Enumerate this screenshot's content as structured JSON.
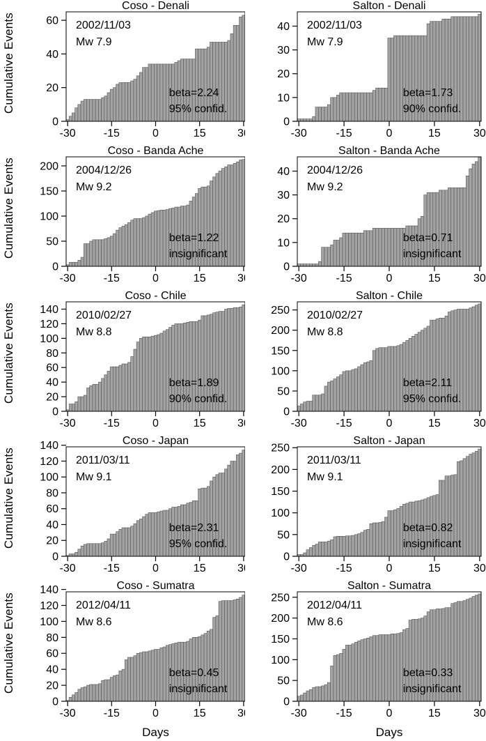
{
  "figure": {
    "y_axis_label": "Cumulative Events",
    "x_axis_label": "Days",
    "x_ticks": [
      -30,
      -15,
      0,
      15,
      30
    ],
    "x_range": [
      -30,
      30
    ],
    "grid": false,
    "legend": "none",
    "colors": {
      "background": "#ffffff",
      "bar_fill": "#a3a3a3",
      "bar_stroke": "#565656",
      "axis": "#000000",
      "text": "#000000"
    }
  },
  "chart_data": [
    {
      "type": "bar",
      "title": "Coso - Denali",
      "annotation_date": "2002/11/03",
      "annotation_mw": "Mw 7.9",
      "beta_label": "beta=2.24",
      "significance_label": "95% confid.",
      "ylabel": "Cumulative Events",
      "yticks": [
        0,
        20,
        40,
        60
      ],
      "ylim": [
        0,
        65
      ],
      "x_days_start": -30,
      "values": [
        1,
        3,
        5,
        8,
        10,
        12,
        13,
        13,
        13,
        13,
        13,
        13,
        14,
        15,
        17,
        19,
        20,
        22,
        23,
        23,
        23,
        23,
        24,
        25,
        27,
        29,
        32,
        32,
        34,
        34,
        34,
        34,
        34,
        34,
        34,
        34,
        34,
        35,
        36,
        37,
        37,
        37,
        37,
        37,
        43,
        43,
        43,
        43,
        44,
        47,
        47,
        47,
        47,
        47,
        47,
        48,
        52,
        57,
        57,
        62,
        63
      ]
    },
    {
      "type": "bar",
      "title": "Salton - Denali",
      "annotation_date": "2002/11/03",
      "annotation_mw": "Mw 7.9",
      "beta_label": "beta=1.73",
      "significance_label": "90% confid.",
      "ylabel": "Cumulative Events",
      "yticks": [
        0,
        10,
        20,
        30,
        40
      ],
      "ylim": [
        0,
        46
      ],
      "x_days_start": -30,
      "values": [
        1,
        1,
        1,
        1,
        1,
        2,
        6,
        6,
        6,
        6,
        7,
        10,
        10,
        11,
        12,
        12,
        12,
        12,
        12,
        12,
        12,
        12,
        12,
        12,
        12,
        13,
        14,
        14,
        14,
        14,
        35,
        35,
        36,
        36,
        36,
        36,
        36,
        36,
        36,
        36,
        36,
        36,
        36,
        41,
        42,
        42,
        42,
        42,
        43,
        43,
        43,
        44,
        44,
        44,
        44,
        44,
        44,
        44,
        44,
        44,
        45
      ]
    },
    {
      "type": "bar",
      "title": "Coso - Banda Ache",
      "annotation_date": "2004/12/26",
      "annotation_mw": "Mw 9.2",
      "beta_label": "beta=1.22",
      "significance_label": "insignificant",
      "ylabel": "Cumulative Events",
      "yticks": [
        0,
        50,
        100,
        150,
        200
      ],
      "ylim": [
        0,
        218
      ],
      "x_days_start": -30,
      "values": [
        3,
        8,
        8,
        8,
        12,
        18,
        45,
        45,
        50,
        53,
        53,
        53,
        53,
        55,
        57,
        60,
        65,
        72,
        77,
        80,
        83,
        87,
        92,
        95,
        95,
        95,
        97,
        100,
        104,
        107,
        110,
        111,
        112,
        112,
        113,
        115,
        116,
        118,
        118,
        120,
        120,
        122,
        130,
        138,
        145,
        155,
        158,
        158,
        160,
        170,
        178,
        185,
        190,
        195,
        198,
        202,
        202,
        205,
        208,
        212,
        213
      ]
    },
    {
      "type": "bar",
      "title": "Salton - Banda Ache",
      "annotation_date": "2004/12/26",
      "annotation_mw": "Mw 9.2",
      "beta_label": "beta=0.71",
      "significance_label": "insignificant",
      "ylabel": "Cumulative Events",
      "yticks": [
        0,
        10,
        20,
        30,
        40
      ],
      "ylim": [
        0,
        46
      ],
      "x_days_start": -30,
      "values": [
        1,
        1,
        1,
        1,
        1,
        1,
        1,
        2,
        8,
        8,
        8,
        9,
        11,
        11,
        12,
        14,
        14,
        14,
        14,
        14,
        14,
        14,
        15,
        15,
        15,
        16,
        16,
        16,
        16,
        16,
        16,
        16,
        16,
        16,
        16,
        16,
        17,
        17,
        17,
        17,
        20,
        21,
        30,
        31,
        31,
        31,
        31,
        32,
        32,
        32,
        33,
        33,
        33,
        33,
        33,
        33,
        38,
        41,
        43,
        44,
        46
      ]
    },
    {
      "type": "bar",
      "title": "Coso - Chile",
      "annotation_date": "2010/02/27",
      "annotation_mw": "Mw 8.8",
      "beta_label": "beta=1.89",
      "significance_label": "90% confid.",
      "ylabel": "Cumulative Events",
      "yticks": [
        0,
        20,
        40,
        60,
        80,
        100,
        120,
        140
      ],
      "ylim": [
        0,
        150
      ],
      "x_days_start": -30,
      "values": [
        2,
        10,
        10,
        13,
        20,
        20,
        22,
        32,
        35,
        37,
        37,
        40,
        45,
        50,
        55,
        61,
        61,
        61,
        63,
        65,
        65,
        67,
        75,
        85,
        95,
        100,
        102,
        102,
        102,
        103,
        104,
        105,
        107,
        110,
        112,
        115,
        118,
        120,
        120,
        120,
        121,
        122,
        123,
        123,
        123,
        125,
        131,
        131,
        132,
        133,
        135,
        136,
        137,
        137,
        140,
        141,
        141,
        142,
        142,
        143,
        146
      ]
    },
    {
      "type": "bar",
      "title": "Salton - Chile",
      "annotation_date": "2010/02/27",
      "annotation_mw": "Mw 8.8",
      "beta_label": "beta=2.11",
      "significance_label": "95% confid.",
      "ylabel": "Cumulative Events",
      "yticks": [
        0,
        50,
        100,
        150,
        200,
        250
      ],
      "ylim": [
        0,
        270
      ],
      "x_days_start": -30,
      "values": [
        13,
        18,
        23,
        25,
        25,
        40,
        40,
        40,
        43,
        62,
        72,
        75,
        80,
        85,
        90,
        98,
        100,
        100,
        103,
        105,
        110,
        115,
        120,
        122,
        125,
        150,
        155,
        157,
        157,
        157,
        160,
        160,
        160,
        162,
        165,
        170,
        175,
        180,
        185,
        190,
        195,
        200,
        205,
        210,
        225,
        225,
        228,
        230,
        230,
        235,
        245,
        248,
        250,
        252,
        252,
        252,
        252,
        255,
        258,
        262,
        265
      ]
    },
    {
      "type": "bar",
      "title": "Coso - Japan",
      "annotation_date": "2011/03/11",
      "annotation_mw": "Mw 9.1",
      "beta_label": "beta=2.31",
      "significance_label": "95% confid.",
      "ylabel": "Cumulative Events",
      "yticks": [
        0,
        20,
        40,
        60,
        80,
        100,
        120,
        140
      ],
      "ylim": [
        0,
        138
      ],
      "x_days_start": -30,
      "values": [
        1,
        3,
        3,
        5,
        9,
        13,
        15,
        16,
        16,
        16,
        16,
        16,
        17,
        19,
        22,
        28,
        28,
        31,
        34,
        36,
        36,
        36,
        38,
        41,
        45,
        47,
        50,
        53,
        55,
        55,
        55,
        56,
        57,
        58,
        58,
        60,
        62,
        62,
        63,
        65,
        65,
        67,
        68,
        70,
        70,
        85,
        86,
        86,
        88,
        95,
        100,
        103,
        105,
        105,
        110,
        115,
        120,
        120,
        128,
        130,
        134
      ]
    },
    {
      "type": "bar",
      "title": "Salton - Japan",
      "annotation_date": "2011/03/11",
      "annotation_mw": "Mw 9.1",
      "beta_label": "beta=0.82",
      "significance_label": "insignificant",
      "ylabel": "Cumulative Events",
      "yticks": [
        0,
        50,
        100,
        150,
        200,
        250
      ],
      "ylim": [
        0,
        252
      ],
      "x_days_start": -30,
      "values": [
        4,
        4,
        8,
        15,
        20,
        25,
        28,
        33,
        33,
        33,
        35,
        38,
        45,
        46,
        46,
        46,
        47,
        47,
        48,
        50,
        52,
        55,
        60,
        62,
        75,
        77,
        77,
        78,
        80,
        90,
        105,
        105,
        107,
        110,
        115,
        120,
        122,
        125,
        125,
        127,
        128,
        130,
        132,
        135,
        138,
        140,
        142,
        175,
        175,
        185,
        185,
        187,
        188,
        218,
        220,
        225,
        230,
        235,
        238,
        242,
        247
      ]
    },
    {
      "type": "bar",
      "title": "Coso - Sumatra",
      "annotation_date": "2012/04/11",
      "annotation_mw": "Mw 8.6",
      "beta_label": "beta=0.45",
      "significance_label": "insignificant",
      "ylabel": "Cumulative Events",
      "xlabel": "Days",
      "yticks": [
        0,
        20,
        40,
        60,
        80,
        100,
        120,
        140
      ],
      "ylim": [
        0,
        137
      ],
      "x_days_start": -30,
      "values": [
        1,
        5,
        8,
        11,
        15,
        17,
        18,
        20,
        21,
        21,
        21,
        22,
        26,
        27,
        27,
        30,
        32,
        33,
        38,
        40,
        52,
        55,
        55,
        57,
        60,
        61,
        62,
        62,
        63,
        64,
        65,
        65,
        67,
        68,
        70,
        71,
        72,
        73,
        74,
        74,
        74,
        75,
        78,
        80,
        80,
        81,
        83,
        85,
        88,
        90,
        105,
        107,
        125,
        126,
        126,
        126,
        126,
        127,
        128,
        130,
        133
      ]
    },
    {
      "type": "bar",
      "title": "Salton - Sumatra",
      "annotation_date": "2012/04/11",
      "annotation_mw": "Mw 8.6",
      "beta_label": "beta=0.33",
      "significance_label": "insignificant",
      "ylabel": "Cumulative Events",
      "xlabel": "Days",
      "yticks": [
        0,
        50,
        100,
        150,
        200,
        250
      ],
      "ylim": [
        0,
        263
      ],
      "x_days_start": -30,
      "values": [
        12,
        15,
        20,
        25,
        28,
        33,
        35,
        35,
        37,
        40,
        45,
        85,
        110,
        112,
        115,
        125,
        135,
        135,
        138,
        142,
        145,
        148,
        150,
        152,
        155,
        158,
        158,
        160,
        160,
        160,
        160,
        162,
        162,
        163,
        165,
        172,
        175,
        195,
        197,
        197,
        198,
        200,
        205,
        215,
        220,
        220,
        222,
        222,
        223,
        225,
        225,
        235,
        237,
        240,
        240,
        242,
        245,
        248,
        252,
        255,
        258
      ]
    }
  ]
}
